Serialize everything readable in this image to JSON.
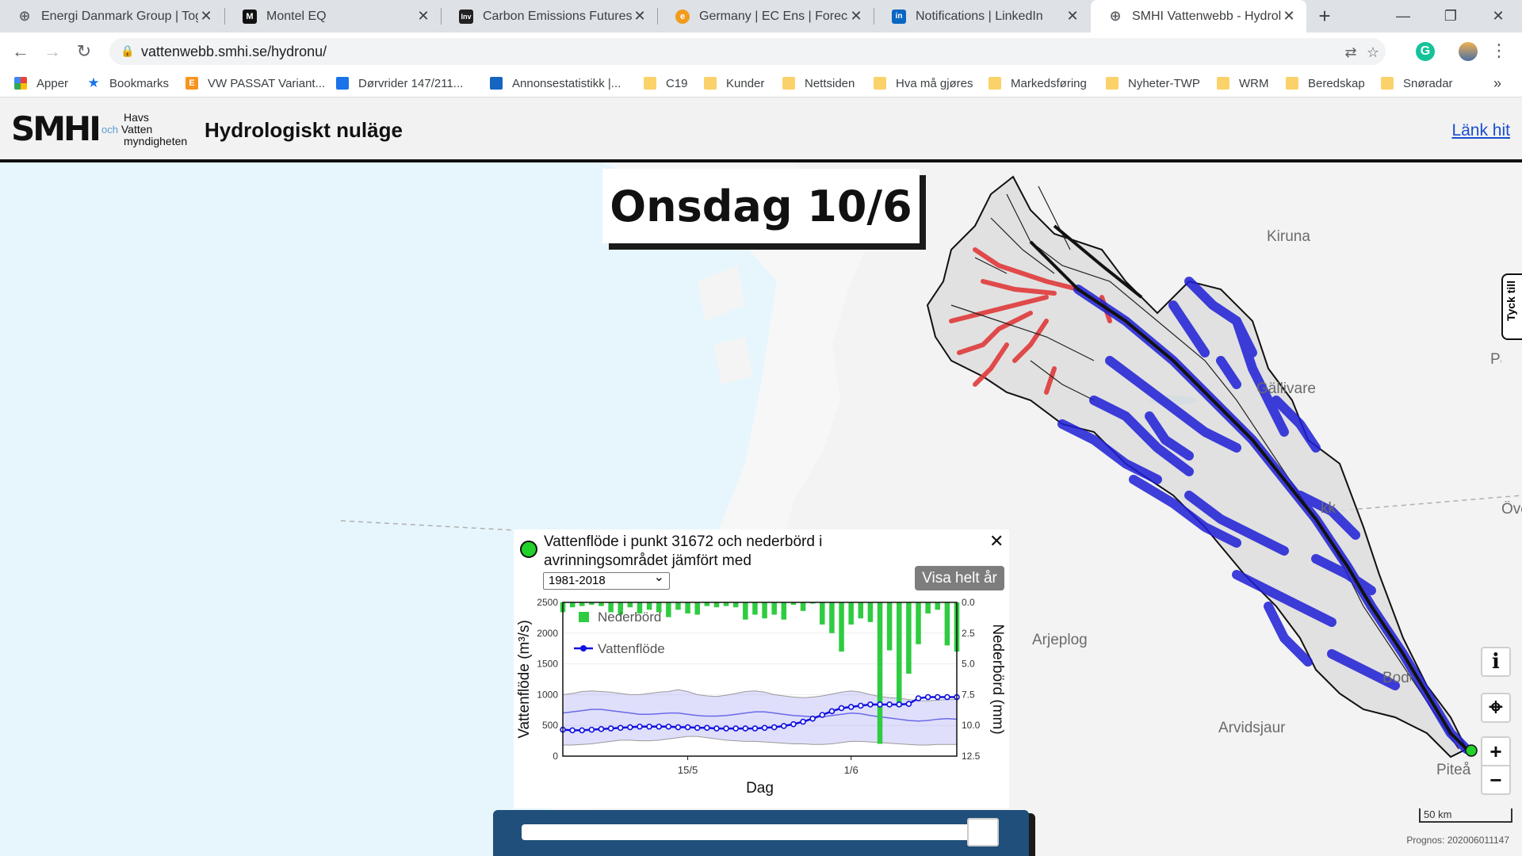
{
  "browser": {
    "tabs": [
      {
        "title": "Energi Danmark Group | Toge",
        "icon": "globe-icon",
        "color": "#5f6368",
        "letter": ""
      },
      {
        "title": "Montel EQ",
        "icon": "montel-icon",
        "color": "#111111",
        "letter": "M"
      },
      {
        "title": "Carbon Emissions Futures Pri",
        "icon": "investing-icon",
        "color": "#222222",
        "letter": "Inv"
      },
      {
        "title": "Germany | EC Ens | Forecast",
        "icon": "forecast-icon",
        "color": "#f29b1d",
        "letter": "e"
      },
      {
        "title": "Notifications | LinkedIn",
        "icon": "linkedin-icon",
        "color": "#0a66c2",
        "letter": "in"
      },
      {
        "title": "SMHI Vattenwebb - Hydrolog",
        "icon": "globe-icon",
        "color": "#5f6368",
        "letter": ""
      }
    ],
    "new_tab": "+",
    "url": "vattenwebb.smhi.se/hydronu/",
    "bookmarks": [
      {
        "label": "Apper",
        "icon": "apps-icon"
      },
      {
        "label": "Bookmarks",
        "icon": "star-icon"
      },
      {
        "label": "VW PASSAT Variant...",
        "icon": "e-site-icon"
      },
      {
        "label": "Dørvrider 147/211...",
        "icon": "site-icon"
      },
      {
        "label": "Annonsestatistikk |...",
        "icon": "stats-icon"
      },
      {
        "label": "C19",
        "icon": "folder-icon"
      },
      {
        "label": "Kunder",
        "icon": "folder-icon"
      },
      {
        "label": "Nettsiden",
        "icon": "folder-icon"
      },
      {
        "label": "Hva må gjøres",
        "icon": "folder-icon"
      },
      {
        "label": "Markedsføring",
        "icon": "folder-icon"
      },
      {
        "label": "Nyheter-TWP",
        "icon": "folder-icon"
      },
      {
        "label": "WRM",
        "icon": "folder-icon"
      },
      {
        "label": "Beredskap",
        "icon": "folder-icon"
      },
      {
        "label": "Snøradar",
        "icon": "folder-icon"
      }
    ],
    "more_bookmarks": "»"
  },
  "header": {
    "logo": "SMHI",
    "partner_line1": "Havs",
    "partner_och": "och",
    "partner_line2": "Vatten",
    "partner_line3": "myndigheten",
    "title": "Hydrologiskt nuläge",
    "link": "Länk hit"
  },
  "map": {
    "day_label": "Onsdag 10/6",
    "side_tab": "Tyck till",
    "places": [
      {
        "name": "Kiruna"
      },
      {
        "name": "Gällivare"
      },
      {
        "name": "Arjeplog"
      },
      {
        "name": "Arvidsjaur"
      },
      {
        "name": "Piteå"
      },
      {
        "name": "Boden"
      },
      {
        "name": "Jokkmokk"
      },
      {
        "name": "Övertorneå"
      },
      {
        "name": "Pajala"
      }
    ],
    "controls": {
      "info": "i",
      "locate": "⌖",
      "zoom_in": "+",
      "zoom_out": "−"
    },
    "scale_label": "50 km",
    "prognos": "Prognos: 202006011147",
    "colors": {
      "basin_blue": "#1f1fd6",
      "basin_red": "#e03a3a"
    }
  },
  "popup": {
    "title": "Vattenflöde i punkt 31672 och nederbörd i avrinningsområdet jämfört med",
    "period": "1981-2018",
    "show_year": "Visa helt år",
    "close": "✕"
  },
  "chart_data": {
    "type": "line",
    "xlabel": "Dag",
    "ylabel_left": "Vattenflöde (m³/s)",
    "ylabel_right": "Nederbörd (mm)",
    "ylim_left": [
      0,
      2500
    ],
    "ylim_right": [
      0,
      12.5
    ],
    "right_axis_inverted": true,
    "yticks_left": [
      0,
      500,
      1000,
      1500,
      2000,
      2500
    ],
    "yticks_right": [
      0.0,
      2.5,
      5.0,
      7.5,
      10.0,
      12.5
    ],
    "xticks": [
      "15/5",
      "1/6"
    ],
    "legend": [
      "Nederbörd",
      "Vattenflöde"
    ],
    "colors": {
      "precip": "#2ecc40",
      "flow": "#1010e0",
      "band": "#8080f0"
    },
    "day_index_range": [
      0,
      41
    ],
    "xtick_day_index": {
      "15/5": 13,
      "1/6": 30
    },
    "series": [
      {
        "name": "Vattenflöde",
        "values": [
          430,
          420,
          420,
          430,
          440,
          450,
          460,
          470,
          480,
          480,
          480,
          480,
          470,
          470,
          460,
          460,
          450,
          450,
          450,
          450,
          450,
          460,
          470,
          490,
          520,
          560,
          610,
          670,
          730,
          780,
          800,
          820,
          840,
          840,
          840,
          840,
          850,
          940,
          960,
          960,
          960,
          960
        ]
      },
      {
        "name": "Nederbörd",
        "values": [
          0.8,
          0.4,
          0.3,
          0.2,
          0.3,
          0.8,
          1.0,
          0.4,
          0.9,
          0.6,
          0.8,
          1.2,
          0.6,
          0.9,
          1.0,
          0.3,
          0.4,
          0.3,
          0.4,
          1.4,
          1.0,
          1.3,
          1.0,
          1.4,
          0.2,
          0.7,
          0.1,
          1.8,
          2.5,
          4.0,
          1.8,
          1.3,
          1.6,
          11.5,
          3.9,
          8.5,
          5.8,
          3.4,
          0.9,
          0.6,
          3.5,
          4.0
        ]
      }
    ],
    "reference_mean": [
      700,
      720,
      740,
      760,
      760,
      740,
      720,
      700,
      680,
      680,
      690,
      700,
      700,
      680,
      660,
      650,
      650,
      660,
      680,
      700,
      720,
      720,
      700,
      680,
      660,
      650,
      640,
      640,
      660,
      680,
      700,
      690,
      660,
      640,
      620,
      600,
      580,
      570,
      580,
      600,
      610,
      600
    ],
    "reference_band_low": [
      180,
      180,
      190,
      200,
      220,
      240,
      260,
      260,
      250,
      250,
      260,
      280,
      300,
      320,
      320,
      300,
      280,
      260,
      250,
      240,
      240,
      230,
      220,
      210,
      200,
      200,
      190,
      190,
      200,
      220,
      240,
      240,
      230,
      220,
      210,
      200,
      190,
      180,
      180,
      190,
      190,
      190
    ],
    "reference_band_high": [
      1000,
      1020,
      1050,
      1060,
      1050,
      1040,
      1020,
      1000,
      1000,
      1020,
      1040,
      1050,
      1080,
      1050,
      1000,
      980,
      970,
      990,
      1020,
      1050,
      1060,
      1040,
      1000,
      980,
      960,
      950,
      960,
      980,
      1010,
      1040,
      1060,
      1040,
      1000,
      970,
      950,
      940,
      920,
      900,
      900,
      910,
      920,
      920
    ]
  },
  "slider": {
    "position": 0.97
  }
}
